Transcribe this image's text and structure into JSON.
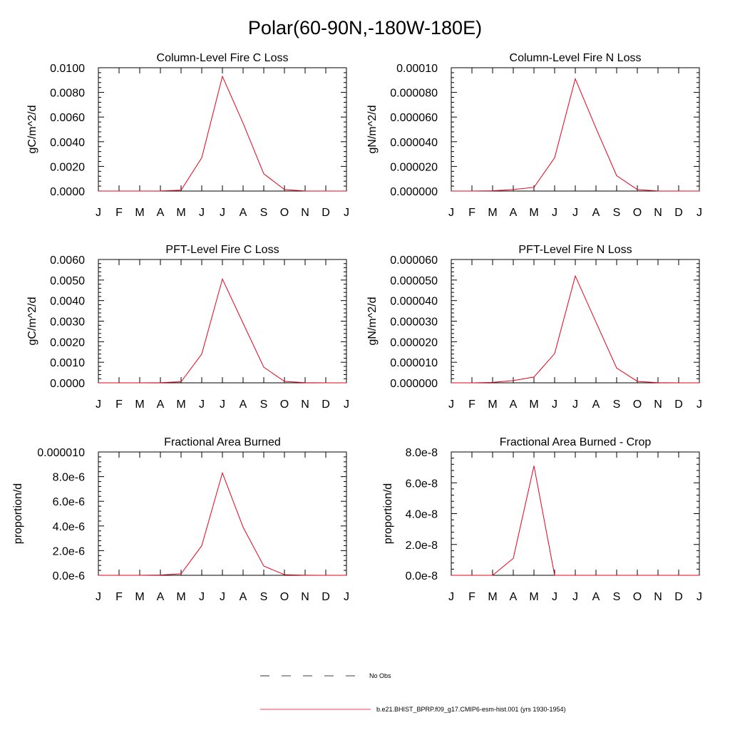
{
  "figure": {
    "title": "Polar(60-90N,-180W-180E)"
  },
  "legend": {
    "items": [
      {
        "label": "No Obs",
        "color": "#000000",
        "dash": true
      },
      {
        "label": "b.e21.BHIST_BPRP.f09_g17.CMIP6-esm-hist.001 (yrs 1930-1954)",
        "color": "#e8001a",
        "dash": false
      }
    ]
  },
  "chart_data": [
    {
      "type": "line",
      "title": "Column-Level Fire C Loss",
      "ylabel": "gC/m^2/d",
      "categories": [
        "J",
        "F",
        "M",
        "A",
        "M",
        "J",
        "J",
        "A",
        "S",
        "O",
        "N",
        "D",
        "J"
      ],
      "ylim": [
        0,
        0.01
      ],
      "yticks": [
        0,
        0.002,
        0.004,
        0.006,
        0.008,
        0.01
      ],
      "ytick_labels": [
        "0.0000",
        "0.0020",
        "0.0040",
        "0.0060",
        "0.0080",
        "0.0100"
      ],
      "series": [
        {
          "color": "#e8001a",
          "values": [
            0,
            0,
            0,
            1e-05,
            7e-05,
            0.0027,
            0.0093,
            0.0055,
            0.0014,
            0.00012,
            1e-05,
            0,
            0
          ]
        }
      ]
    },
    {
      "type": "line",
      "title": "Column-Level Fire N Loss",
      "ylabel": "gN/m^2/d",
      "categories": [
        "J",
        "F",
        "M",
        "A",
        "M",
        "J",
        "J",
        "A",
        "S",
        "O",
        "N",
        "D",
        "J"
      ],
      "ylim": [
        0,
        0.0001
      ],
      "yticks": [
        0,
        2e-05,
        4e-05,
        6e-05,
        8e-05,
        0.0001
      ],
      "ytick_labels": [
        "0.000000",
        "0.000020",
        "0.000040",
        "0.000060",
        "0.000080",
        "0.00010"
      ],
      "series": [
        {
          "color": "#e8001a",
          "values": [
            0,
            0,
            2e-07,
            1.2e-06,
            3e-06,
            2.7e-05,
            9.1e-05,
            5.1e-05,
            1.25e-05,
            1.2e-06,
            1e-07,
            0,
            0
          ]
        }
      ]
    },
    {
      "type": "line",
      "title": "PFT-Level Fire C Loss",
      "ylabel": "gC/m^2/d",
      "categories": [
        "J",
        "F",
        "M",
        "A",
        "M",
        "J",
        "J",
        "A",
        "S",
        "O",
        "N",
        "D",
        "J"
      ],
      "ylim": [
        0,
        0.006
      ],
      "yticks": [
        0,
        0.001,
        0.002,
        0.003,
        0.004,
        0.005,
        0.006
      ],
      "ytick_labels": [
        "0.0000",
        "0.0010",
        "0.0020",
        "0.0030",
        "0.0040",
        "0.0050",
        "0.0060"
      ],
      "series": [
        {
          "color": "#e8001a",
          "values": [
            0,
            0,
            0,
            1e-05,
            5e-05,
            0.0014,
            0.00505,
            0.0029,
            0.00076,
            7e-05,
            1e-05,
            0,
            0
          ]
        }
      ]
    },
    {
      "type": "line",
      "title": "PFT-Level Fire N Loss",
      "ylabel": "gN/m^2/d",
      "categories": [
        "J",
        "F",
        "M",
        "A",
        "M",
        "J",
        "J",
        "A",
        "S",
        "O",
        "N",
        "D",
        "J"
      ],
      "ylim": [
        0,
        6e-05
      ],
      "yticks": [
        0,
        1e-05,
        2e-05,
        3e-05,
        4e-05,
        5e-05,
        6e-05
      ],
      "ytick_labels": [
        "0.000000",
        "0.000010",
        "0.000020",
        "0.000030",
        "0.000040",
        "0.000050",
        "0.000060"
      ],
      "series": [
        {
          "color": "#e8001a",
          "values": [
            0,
            0,
            2e-07,
            1.1e-06,
            2.8e-06,
            1.42e-05,
            5.2e-05,
            2.95e-05,
            7.2e-06,
            7e-07,
            1e-07,
            0,
            0
          ]
        }
      ]
    },
    {
      "type": "line",
      "title": "Fractional Area Burned",
      "ylabel": "proportion/d",
      "categories": [
        "J",
        "F",
        "M",
        "A",
        "M",
        "J",
        "J",
        "A",
        "S",
        "O",
        "N",
        "D",
        "J"
      ],
      "ylim": [
        0,
        1e-05
      ],
      "yticks": [
        0,
        2e-06,
        4e-06,
        6e-06,
        8e-06,
        1e-05
      ],
      "ytick_labels": [
        "0.0e-6",
        "2.0e-6",
        "4.0e-6",
        "6.0e-6",
        "8.0e-6",
        "0.000010"
      ],
      "series": [
        {
          "color": "#e8001a",
          "values": [
            0,
            0,
            0,
            2e-08,
            1.2e-07,
            2.4e-06,
            8.3e-06,
            3.9e-06,
            7.5e-07,
            5e-08,
            1e-08,
            0,
            0
          ]
        }
      ]
    },
    {
      "type": "line",
      "title": "Fractional Area Burned - Crop",
      "ylabel": "proportion/d",
      "categories": [
        "J",
        "F",
        "M",
        "A",
        "M",
        "J",
        "J",
        "A",
        "S",
        "O",
        "N",
        "D",
        "J"
      ],
      "ylim": [
        0,
        8e-08
      ],
      "yticks": [
        0,
        2e-08,
        4e-08,
        6e-08,
        8e-08
      ],
      "ytick_labels": [
        "0.0e-8",
        "2.0e-8",
        "4.0e-8",
        "6.0e-8",
        "8.0e-8"
      ],
      "series": [
        {
          "color": "#e8001a",
          "values": [
            0,
            0,
            0,
            1.1e-08,
            7.1e-08,
            0,
            0,
            0,
            0,
            0,
            0,
            0,
            0
          ]
        }
      ]
    }
  ]
}
